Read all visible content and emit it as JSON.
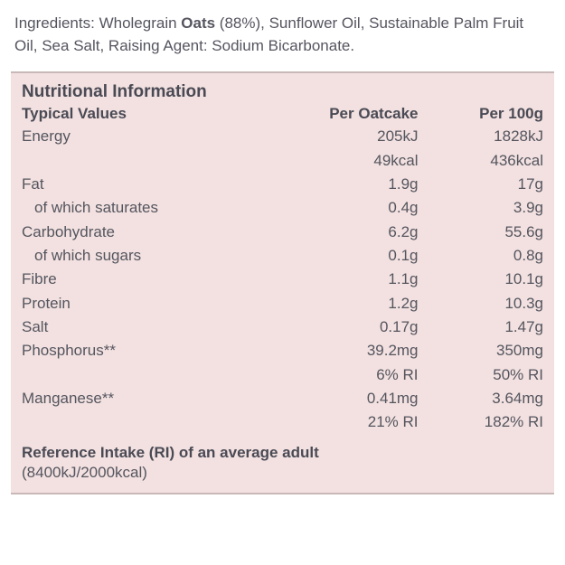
{
  "ingredients": {
    "label": "Ingredients:",
    "pre": " Wholegrain ",
    "bold": "Oats",
    "post": " (88%), Sunflower Oil, Sustainable Palm Fruit Oil, Sea Salt, Raising Agent: Sodium Bicarbonate."
  },
  "panel": {
    "title": "Nutritional Information",
    "headers": {
      "typical": "Typical Values",
      "colA": "Per Oatcake",
      "colB": "Per 100g"
    },
    "rows": [
      {
        "label": "Energy",
        "a": "205kJ",
        "b": "1828kJ"
      },
      {
        "label": "",
        "a": "49kcal",
        "b": "436kcal"
      },
      {
        "label": "Fat",
        "a": "1.9g",
        "b": "17g"
      },
      {
        "label": "of which saturates",
        "indent": true,
        "a": "0.4g",
        "b": "3.9g"
      },
      {
        "label": "Carbohydrate",
        "a": "6.2g",
        "b": "55.6g"
      },
      {
        "label": "of which sugars",
        "indent": true,
        "a": "0.1g",
        "b": "0.8g"
      },
      {
        "label": "Fibre",
        "a": "1.1g",
        "b": "10.1g"
      },
      {
        "label": "Protein",
        "a": "1.2g",
        "b": "10.3g"
      },
      {
        "label": "Salt",
        "a": "0.17g",
        "b": "1.47g"
      },
      {
        "label": "Phosphorus**",
        "a": "39.2mg",
        "b": "350mg"
      },
      {
        "label": "",
        "a": "6% RI",
        "b": "50% RI"
      },
      {
        "label": "Manganese**",
        "a": "0.41mg",
        "b": "3.64mg"
      },
      {
        "label": "",
        "a": "21% RI",
        "b": "182% RI"
      }
    ],
    "ri_line": "Reference Intake (RI) of an average adult",
    "ri_sub": "(8400kJ/2000kcal)"
  },
  "style": {
    "panel_bg": "#f2e1e0",
    "text_color": "#55555f",
    "heading_color": "#4a4a55",
    "font_size_pt": 13
  }
}
